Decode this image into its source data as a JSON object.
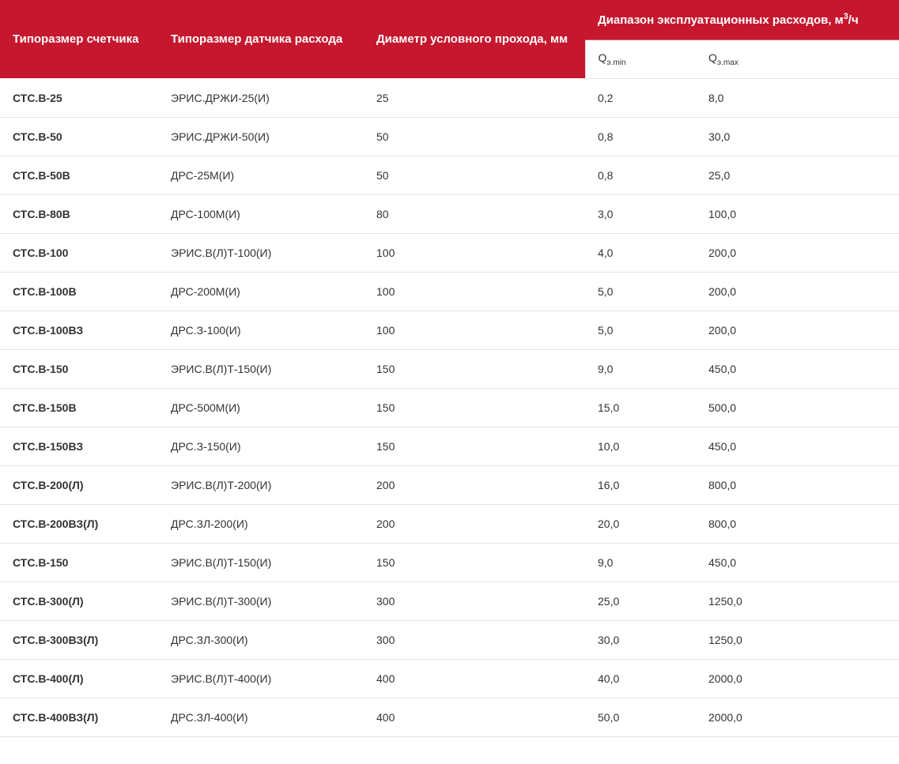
{
  "table": {
    "header_bg": "#c5172e",
    "header_fg": "#ffffff",
    "border_color": "#e5e5e5",
    "text_color": "#333333",
    "header_fontsize": 15,
    "cell_fontsize": 14,
    "columns": {
      "meter_size": "Типоразмер счетчика",
      "sensor_size": "Типоразмер датчика расхода",
      "diameter": "Диаметр условного прохода, мм",
      "range_label_prefix": "Диапазон эксплуатационных расходов, м",
      "range_label_sup": "3",
      "range_label_suffix": "/ч",
      "qmin_prefix": "Q",
      "qmin_sub": "э.min",
      "qmax_prefix": "Q",
      "qmax_sub": "э.max"
    },
    "rows": [
      {
        "meter": "СТС.В-25",
        "sensor": "ЭРИС.ДРЖИ-25(И)",
        "dia": "25",
        "qmin": "0,2",
        "qmax": "8,0"
      },
      {
        "meter": "СТС.В-50",
        "sensor": "ЭРИС.ДРЖИ-50(И)",
        "dia": "50",
        "qmin": "0,8",
        "qmax": "30,0"
      },
      {
        "meter": "СТС.В-50В",
        "sensor": "ДРС-25М(И)",
        "dia": "50",
        "qmin": "0,8",
        "qmax": "25,0"
      },
      {
        "meter": "СТС.В-80В",
        "sensor": "ДРС-100М(И)",
        "dia": "80",
        "qmin": "3,0",
        "qmax": "100,0"
      },
      {
        "meter": "СТС.В-100",
        "sensor": "ЭРИС.В(Л)Т-100(И)",
        "dia": "100",
        "qmin": "4,0",
        "qmax": "200,0"
      },
      {
        "meter": "СТС.В-100В",
        "sensor": "ДРС-200М(И)",
        "dia": "100",
        "qmin": "5,0",
        "qmax": "200,0"
      },
      {
        "meter": "СТС.В-100ВЗ",
        "sensor": "ДРС.З-100(И)",
        "dia": "100",
        "qmin": "5,0",
        "qmax": "200,0"
      },
      {
        "meter": "СТС.В-150",
        "sensor": "ЭРИС.В(Л)Т-150(И)",
        "dia": "150",
        "qmin": "9,0",
        "qmax": "450,0"
      },
      {
        "meter": "СТС.В-150В",
        "sensor": "ДРС-500М(И)",
        "dia": "150",
        "qmin": "15,0",
        "qmax": "500,0"
      },
      {
        "meter": "СТС.В-150ВЗ",
        "sensor": "ДРС.З-150(И)",
        "dia": "150",
        "qmin": "10,0",
        "qmax": "450,0"
      },
      {
        "meter": "СТС.В-200(Л)",
        "sensor": "ЭРИС.В(Л)Т-200(И)",
        "dia": "200",
        "qmin": "16,0",
        "qmax": "800,0"
      },
      {
        "meter": "СТС.В-200ВЗ(Л)",
        "sensor": "ДРС.ЗЛ-200(И)",
        "dia": "200",
        "qmin": "20,0",
        "qmax": "800,0"
      },
      {
        "meter": "СТС.В-150",
        "sensor": "ЭРИС.В(Л)Т-150(И)",
        "dia": "150",
        "qmin": "9,0",
        "qmax": "450,0"
      },
      {
        "meter": "СТС.В-300(Л)",
        "sensor": "ЭРИС.В(Л)Т-300(И)",
        "dia": "300",
        "qmin": "25,0",
        "qmax": "1250,0"
      },
      {
        "meter": "СТС.В-300ВЗ(Л)",
        "sensor": "ДРС.ЗЛ-300(И)",
        "dia": "300",
        "qmin": "30,0",
        "qmax": "1250,0"
      },
      {
        "meter": "СТС.В-400(Л)",
        "sensor": "ЭРИС.В(Л)Т-400(И)",
        "dia": "400",
        "qmin": "40,0",
        "qmax": "2000,0"
      },
      {
        "meter": "СТС.В-400ВЗ(Л)",
        "sensor": "ДРС.ЗЛ-400(И)",
        "dia": "400",
        "qmin": "50,0",
        "qmax": "2000,0"
      }
    ]
  }
}
